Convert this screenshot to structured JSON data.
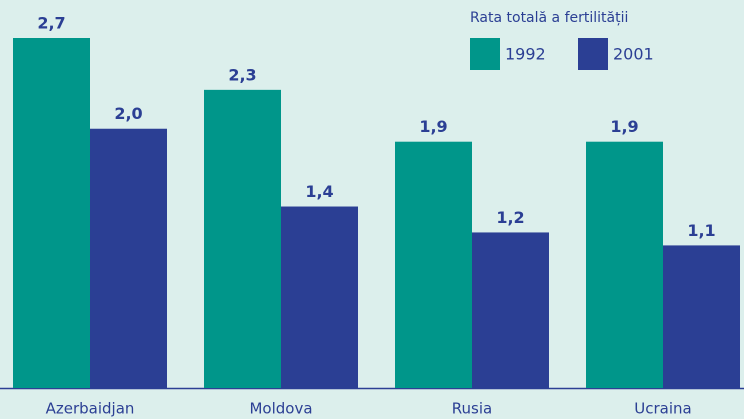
{
  "chart_data": {
    "type": "bar",
    "legend_title": "Rata totală a fertilității",
    "categories": [
      "Azerbaidjan",
      "Moldova",
      "Rusia",
      "Ucraina"
    ],
    "series": [
      {
        "name": "1992",
        "color": "#00968a",
        "values": [
          2.7,
          2.3,
          1.9,
          1.9
        ],
        "value_labels": [
          "2,7",
          "2,3",
          "1,9",
          "1,9"
        ]
      },
      {
        "name": "2001",
        "color": "#2b3f94",
        "values": [
          2.0,
          1.4,
          1.2,
          1.1
        ],
        "value_labels": [
          "2,0",
          "1,4",
          "1,2",
          "1,1"
        ]
      }
    ]
  }
}
